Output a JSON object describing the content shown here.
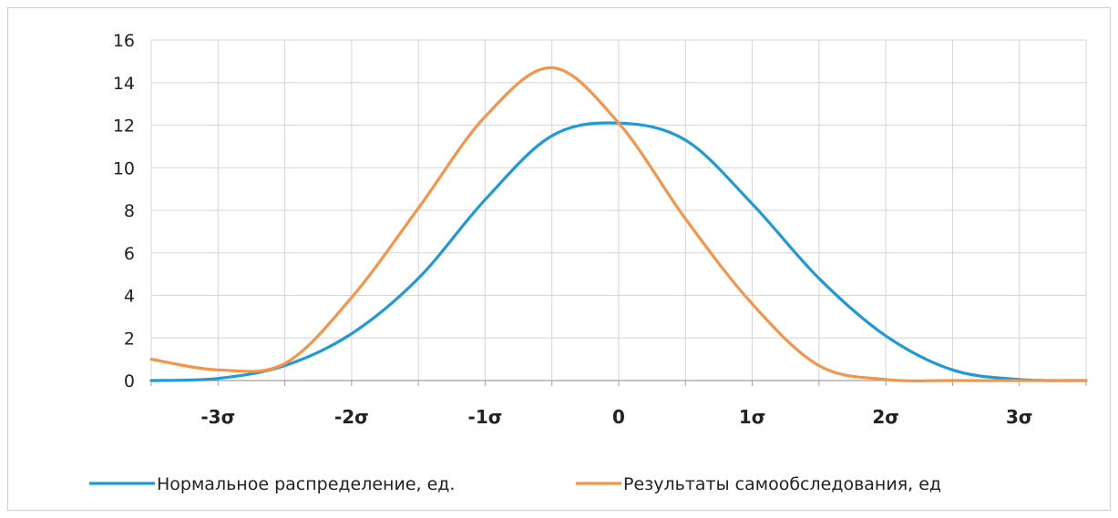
{
  "chart_data": {
    "type": "line",
    "x_tick_labels": [
      "-3σ",
      "-2σ",
      "-1σ",
      "0",
      "1σ",
      "2σ",
      "3σ"
    ],
    "x_tick_values": [
      -3,
      -2,
      -1,
      0,
      1,
      2,
      3
    ],
    "xlim": [
      -3.5,
      3.5
    ],
    "ylim": [
      0,
      16
    ],
    "y_ticks": [
      0,
      2,
      4,
      6,
      8,
      10,
      12,
      14,
      16
    ],
    "grid": true,
    "legend_position": "bottom",
    "series": [
      {
        "name": "Нормальное распределение, ед.",
        "color": "#1f9ad6",
        "x": [
          -3.5,
          -3,
          -2.5,
          -2,
          -1.5,
          -1,
          -0.5,
          0,
          0.5,
          1,
          1.5,
          2,
          2.5,
          3,
          3.5
        ],
        "y": [
          0,
          0.1,
          0.7,
          2.2,
          4.8,
          8.5,
          11.5,
          12.1,
          11.3,
          8.3,
          4.8,
          2.1,
          0.5,
          0.05,
          0
        ]
      },
      {
        "name": "Результаты самообследования, ед",
        "color": "#f4954a",
        "x": [
          -3.5,
          -3,
          -2.5,
          -2,
          -1.5,
          -1,
          -0.5,
          0,
          0.5,
          1,
          1.5,
          2,
          2.5,
          3,
          3.5
        ],
        "y": [
          1.0,
          0.5,
          0.8,
          3.9,
          8.1,
          12.4,
          14.7,
          12.1,
          7.6,
          3.6,
          0.7,
          0.05,
          0,
          0,
          0
        ]
      }
    ]
  }
}
